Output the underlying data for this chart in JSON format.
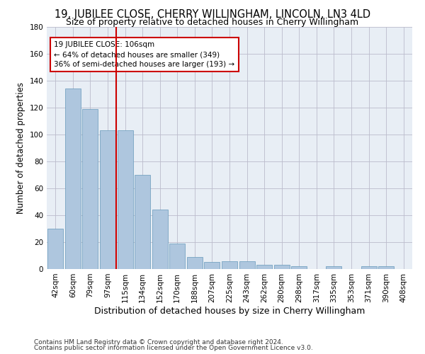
{
  "title": "19, JUBILEE CLOSE, CHERRY WILLINGHAM, LINCOLN, LN3 4LD",
  "subtitle": "Size of property relative to detached houses in Cherry Willingham",
  "xlabel": "Distribution of detached houses by size in Cherry Willingham",
  "ylabel": "Number of detached properties",
  "footer1": "Contains HM Land Registry data © Crown copyright and database right 2024.",
  "footer2": "Contains public sector information licensed under the Open Government Licence v3.0.",
  "categories": [
    "42sqm",
    "60sqm",
    "79sqm",
    "97sqm",
    "115sqm",
    "134sqm",
    "152sqm",
    "170sqm",
    "188sqm",
    "207sqm",
    "225sqm",
    "243sqm",
    "262sqm",
    "280sqm",
    "298sqm",
    "317sqm",
    "335sqm",
    "353sqm",
    "371sqm",
    "390sqm",
    "408sqm"
  ],
  "values": [
    30,
    134,
    119,
    103,
    103,
    70,
    44,
    19,
    9,
    5,
    6,
    6,
    3,
    3,
    2,
    0,
    2,
    0,
    2,
    2,
    0
  ],
  "bar_color": "#aec6de",
  "bar_edge_color": "#6699bb",
  "grid_color": "#bbbbcc",
  "bg_color": "#e8eef5",
  "annotation_box_color": "#cc0000",
  "vline_color": "#cc0000",
  "vline_position": 3.5,
  "annotation_line1": "19 JUBILEE CLOSE: 106sqm",
  "annotation_line2": "← 64% of detached houses are smaller (349)",
  "annotation_line3": "36% of semi-detached houses are larger (193) →",
  "ylim": [
    0,
    180
  ],
  "yticks": [
    0,
    20,
    40,
    60,
    80,
    100,
    120,
    140,
    160,
    180
  ],
  "title_fontsize": 10.5,
  "subtitle_fontsize": 9,
  "xlabel_fontsize": 9,
  "ylabel_fontsize": 8.5,
  "tick_fontsize": 7.5,
  "footer_fontsize": 6.5,
  "annotation_fontsize": 7.5
}
